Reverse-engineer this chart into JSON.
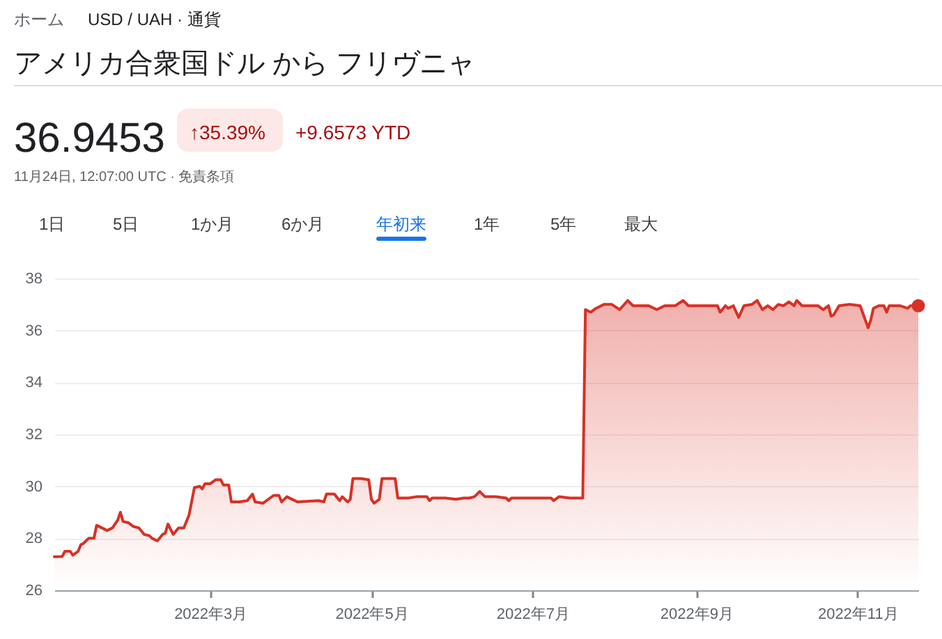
{
  "chart_data": {
    "type": "area",
    "title": "アメリカ合衆国ドル から フリヴニャ",
    "annotations": [
      "ホーム",
      "USD / UAH · 通貨",
      "36.9453",
      "↑35.39%",
      "+9.6573 YTD",
      "11月24日, 12:07:00 UTC · 免責条項",
      "1日",
      "5日",
      "1か月",
      "6か月",
      "年初来",
      "1年",
      "5年",
      "最大"
    ],
    "xlim": [
      "2022-01-01",
      "2022-11-24"
    ],
    "xticks": [
      {
        "value": "2022-03-01",
        "label": "2022年3月"
      },
      {
        "value": "2022-05-01",
        "label": "2022年5月"
      },
      {
        "value": "2022-07-01",
        "label": "2022年7月"
      },
      {
        "value": "2022-09-01",
        "label": "2022年9月"
      },
      {
        "value": "2022-11-01",
        "label": "2022年11月"
      }
    ],
    "ylim": [
      26,
      38
    ],
    "yticks": [
      26,
      28,
      30,
      32,
      34,
      36,
      38
    ],
    "grid": "y",
    "series": [
      {
        "color": "#d93025",
        "x": [
          "2022-01-01",
          "2022-01-04",
          "2022-01-05",
          "2022-01-07",
          "2022-01-08",
          "2022-01-10",
          "2022-01-11",
          "2022-01-12",
          "2022-01-14",
          "2022-01-16",
          "2022-01-17",
          "2022-01-19",
          "2022-01-21",
          "2022-01-23",
          "2022-01-25",
          "2022-01-26",
          "2022-01-27",
          "2022-01-29",
          "2022-01-31",
          "2022-02-02",
          "2022-02-04",
          "2022-02-06",
          "2022-02-07",
          "2022-02-09",
          "2022-02-11",
          "2022-02-12",
          "2022-02-13",
          "2022-02-15",
          "2022-02-17",
          "2022-02-19",
          "2022-02-21",
          "2022-02-23",
          "2022-02-25",
          "2022-02-26",
          "2022-02-27",
          "2022-03-01",
          "2022-03-03",
          "2022-03-05",
          "2022-03-06",
          "2022-03-08",
          "2022-03-09",
          "2022-03-12",
          "2022-03-15",
          "2022-03-17",
          "2022-03-18",
          "2022-03-21",
          "2022-03-25",
          "2022-03-27",
          "2022-03-28",
          "2022-03-30",
          "2022-04-01",
          "2022-04-03",
          "2022-04-11",
          "2022-04-13",
          "2022-04-14",
          "2022-04-17",
          "2022-04-19",
          "2022-04-20",
          "2022-04-22",
          "2022-04-23",
          "2022-04-24",
          "2022-04-27",
          "2022-04-30",
          "2022-05-01",
          "2022-05-02",
          "2022-05-04",
          "2022-05-05",
          "2022-05-10",
          "2022-05-11",
          "2022-05-15",
          "2022-05-18",
          "2022-05-22",
          "2022-05-23",
          "2022-05-24",
          "2022-05-29",
          "2022-06-02",
          "2022-06-05",
          "2022-06-07",
          "2022-06-09",
          "2022-06-11",
          "2022-06-13",
          "2022-06-17",
          "2022-06-21",
          "2022-06-22",
          "2022-06-23",
          "2022-07-08",
          "2022-07-09",
          "2022-07-11",
          "2022-07-15",
          "2022-07-20",
          "2022-07-21",
          "2022-07-23",
          "2022-07-25",
          "2022-07-28",
          "2022-07-31",
          "2022-08-03",
          "2022-08-06",
          "2022-08-08",
          "2022-08-14",
          "2022-08-17",
          "2022-08-20",
          "2022-08-24",
          "2022-08-27",
          "2022-08-29",
          "2022-09-03",
          "2022-09-09",
          "2022-09-10",
          "2022-09-12",
          "2022-09-13",
          "2022-09-15",
          "2022-09-17",
          "2022-09-19",
          "2022-09-22",
          "2022-09-24",
          "2022-09-26",
          "2022-09-28",
          "2022-09-30",
          "2022-10-02",
          "2022-10-04",
          "2022-10-06",
          "2022-10-08",
          "2022-10-09",
          "2022-10-11",
          "2022-10-17",
          "2022-10-19",
          "2022-10-21",
          "2022-10-22",
          "2022-10-23",
          "2022-10-25",
          "2022-10-29",
          "2022-11-02",
          "2022-11-05",
          "2022-11-06",
          "2022-11-07",
          "2022-11-09",
          "2022-11-11",
          "2022-11-12",
          "2022-11-13",
          "2022-11-17",
          "2022-11-20",
          "2022-11-21",
          "2022-11-24"
        ],
        "values": [
          27.29,
          27.3,
          27.5,
          27.5,
          27.35,
          27.5,
          27.75,
          27.8,
          28.0,
          28.0,
          28.5,
          28.4,
          28.3,
          28.4,
          28.7,
          29.0,
          28.65,
          28.6,
          28.45,
          28.4,
          28.15,
          28.1,
          28.0,
          27.9,
          28.15,
          28.2,
          28.55,
          28.15,
          28.4,
          28.4,
          28.9,
          29.95,
          30.0,
          29.9,
          30.1,
          30.1,
          30.25,
          30.25,
          30.05,
          30.05,
          29.4,
          29.4,
          29.45,
          29.7,
          29.4,
          29.35,
          29.65,
          29.65,
          29.4,
          29.6,
          29.5,
          29.4,
          29.45,
          29.4,
          29.7,
          29.7,
          29.45,
          29.6,
          29.4,
          29.5,
          30.3,
          30.3,
          30.25,
          29.5,
          29.35,
          29.5,
          30.3,
          30.3,
          29.55,
          29.55,
          29.6,
          29.6,
          29.45,
          29.55,
          29.55,
          29.5,
          29.55,
          29.55,
          29.6,
          29.8,
          29.6,
          29.6,
          29.55,
          29.45,
          29.55,
          29.55,
          29.45,
          29.6,
          29.55,
          29.55,
          36.8,
          36.7,
          36.85,
          37.0,
          37.0,
          36.8,
          37.15,
          36.95,
          36.95,
          36.8,
          36.95,
          36.95,
          37.15,
          36.95,
          36.95,
          36.95,
          36.7,
          36.95,
          36.85,
          36.95,
          36.5,
          36.95,
          37.0,
          37.15,
          36.8,
          36.95,
          36.8,
          37.0,
          36.95,
          37.1,
          36.95,
          37.15,
          36.95,
          36.95,
          36.8,
          36.95,
          36.55,
          36.6,
          36.95,
          37.0,
          36.95,
          36.1,
          36.4,
          36.85,
          36.95,
          36.95,
          36.7,
          36.95,
          36.95,
          36.85,
          36.95,
          36.95
        ]
      },
      {
        "type": "scatter",
        "color": "#d93025",
        "x": [
          "2022-11-24"
        ],
        "values": [
          36.95
        ]
      }
    ]
  }
}
